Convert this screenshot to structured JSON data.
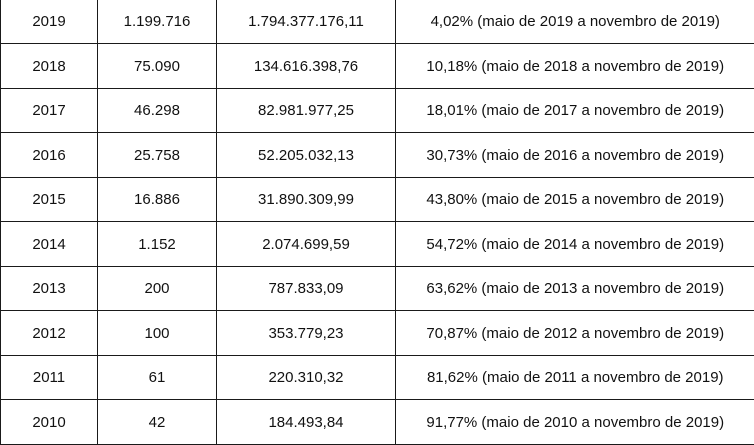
{
  "table": {
    "rows": [
      {
        "year": "2019",
        "quantity": "1.199.716",
        "value": "1.794.377.176,11",
        "rate": "4,02% (maio de 2019 a novembro de 2019)"
      },
      {
        "year": "2018",
        "quantity": "75.090",
        "value": "134.616.398,76",
        "rate": "10,18% (maio de 2018 a novembro de 2019)"
      },
      {
        "year": "2017",
        "quantity": "46.298",
        "value": "82.981.977,25",
        "rate": "18,01% (maio de 2017 a novembro de 2019)"
      },
      {
        "year": "2016",
        "quantity": "25.758",
        "value": "52.205.032,13",
        "rate": "30,73% (maio de 2016 a novembro de 2019)"
      },
      {
        "year": "2015",
        "quantity": "16.886",
        "value": "31.890.309,99",
        "rate": "43,80% (maio de 2015 a novembro de 2019)"
      },
      {
        "year": "2014",
        "quantity": "1.152",
        "value": "2.074.699,59",
        "rate": "54,72% (maio de 2014 a novembro de 2019)"
      },
      {
        "year": "2013",
        "quantity": "200",
        "value": "787.833,09",
        "rate": "63,62% (maio de 2013 a novembro de 2019)"
      },
      {
        "year": "2012",
        "quantity": "100",
        "value": "353.779,23",
        "rate": "70,87% (maio de 2012 a novembro de 2019)"
      },
      {
        "year": "2011",
        "quantity": "61",
        "value": "220.310,32",
        "rate": "81,62% (maio de 2011 a novembro de 2019)"
      },
      {
        "year": "2010",
        "quantity": "42",
        "value": "184.493,84",
        "rate": "91,77% (maio de 2010 a novembro de 2019)"
      }
    ]
  }
}
